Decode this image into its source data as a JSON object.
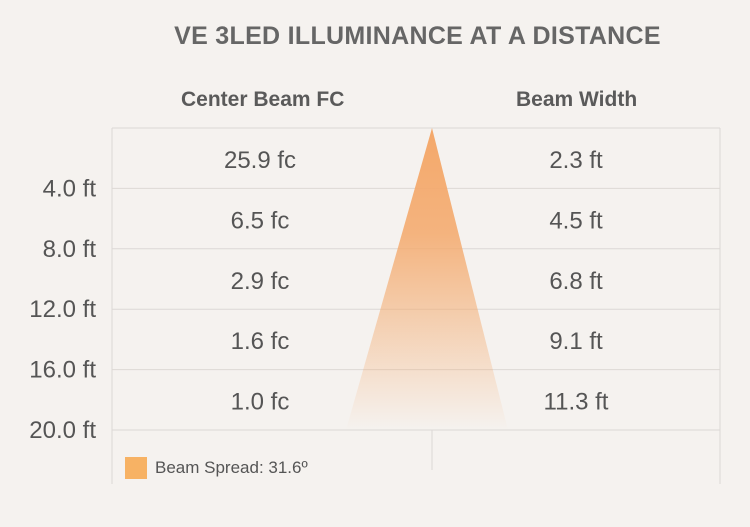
{
  "chart_data": {
    "type": "table",
    "title": "VE 3LED ILLUMINANCE AT A DISTANCE",
    "columns": [
      "Center Beam FC",
      "Beam Width"
    ],
    "rows": [
      {
        "distance": "4.0 ft",
        "center_beam_fc": "25.9 fc",
        "beam_width": "2.3 ft"
      },
      {
        "distance": "8.0 ft",
        "center_beam_fc": "6.5 fc",
        "beam_width": "4.5 ft"
      },
      {
        "distance": "12.0 ft",
        "center_beam_fc": "2.9 fc",
        "beam_width": "6.8 ft"
      },
      {
        "distance": "16.0 ft",
        "center_beam_fc": "1.6 fc",
        "beam_width": "9.1 ft"
      },
      {
        "distance": "20.0 ft",
        "center_beam_fc": "1.0 fc",
        "beam_width": "11.3 ft"
      }
    ],
    "legend": "Beam Spread: 31.6º",
    "colors": {
      "beam": "#f4a86a",
      "legend_swatch": "#f7b264",
      "grid": "#dcd8d5"
    }
  }
}
